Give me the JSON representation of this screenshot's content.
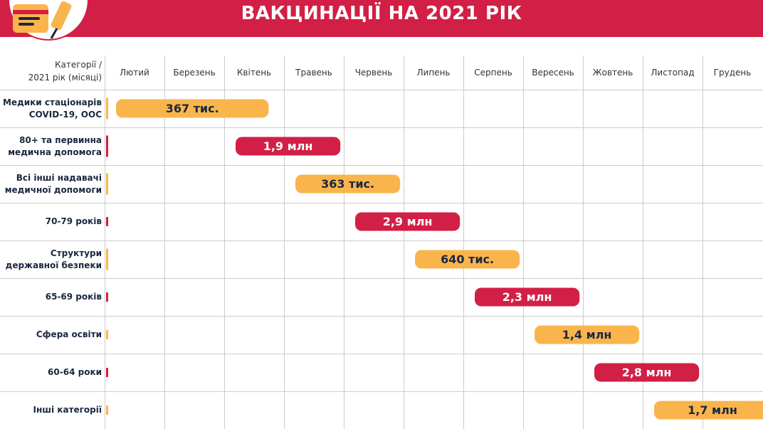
{
  "header": {
    "title": "ВАКЦИНАЦІЇ НА 2021 РІК"
  },
  "chart_data": {
    "type": "gantt",
    "corner_label_line1": "Категорії /",
    "corner_label_line2": "2021 рік (місяці)",
    "categories": [
      "Лютий",
      "Березень",
      "Квітень",
      "Травень",
      "Червень",
      "Липень",
      "Серпень",
      "Вересень",
      "Жовтень",
      "Листопад",
      "Грудень"
    ],
    "rows": [
      {
        "label_lines": [
          "Медики стаціонарів",
          "COVID-19, ООС"
        ],
        "start": 0.0,
        "end": 2.6,
        "value": "367 тис.",
        "color": "#f9b54c",
        "text_color": "#1a2740"
      },
      {
        "label_lines": [
          "80+ та первинна",
          "медична допомога"
        ],
        "start": 2.0,
        "end": 3.8,
        "value": "1,9 млн",
        "color": "#d21f45",
        "text_color": "#ffffff"
      },
      {
        "label_lines": [
          "Всі інші надавачі",
          "медичної допомоги"
        ],
        "start": 3.0,
        "end": 4.8,
        "value": "363 тис.",
        "color": "#f9b54c",
        "text_color": "#1a2740"
      },
      {
        "label_lines": [
          "70-79 років"
        ],
        "start": 4.0,
        "end": 5.8,
        "value": "2,9 млн",
        "color": "#d21f45",
        "text_color": "#ffffff"
      },
      {
        "label_lines": [
          "Структури",
          "державної безпеки"
        ],
        "start": 5.0,
        "end": 6.8,
        "value": "640 тис.",
        "color": "#f9b54c",
        "text_color": "#1a2740"
      },
      {
        "label_lines": [
          "65-69 років"
        ],
        "start": 6.0,
        "end": 7.8,
        "value": "2,3 млн",
        "color": "#d21f45",
        "text_color": "#ffffff"
      },
      {
        "label_lines": [
          "Сфера освіти"
        ],
        "start": 7.0,
        "end": 8.8,
        "value": "1,4 млн",
        "color": "#f9b54c",
        "text_color": "#1a2740"
      },
      {
        "label_lines": [
          "60-64 роки"
        ],
        "start": 8.0,
        "end": 9.8,
        "value": "2,8 млн",
        "color": "#d21f45",
        "text_color": "#ffffff"
      },
      {
        "label_lines": [
          "Інші категорії"
        ],
        "start": 9.0,
        "end": 11.0,
        "value": "1,7 млн",
        "color": "#f9b54c",
        "text_color": "#1a2740"
      }
    ],
    "colors": {
      "accent_red": "#d21f45",
      "accent_orange": "#f9b54c",
      "grid": "#cccccc"
    }
  }
}
